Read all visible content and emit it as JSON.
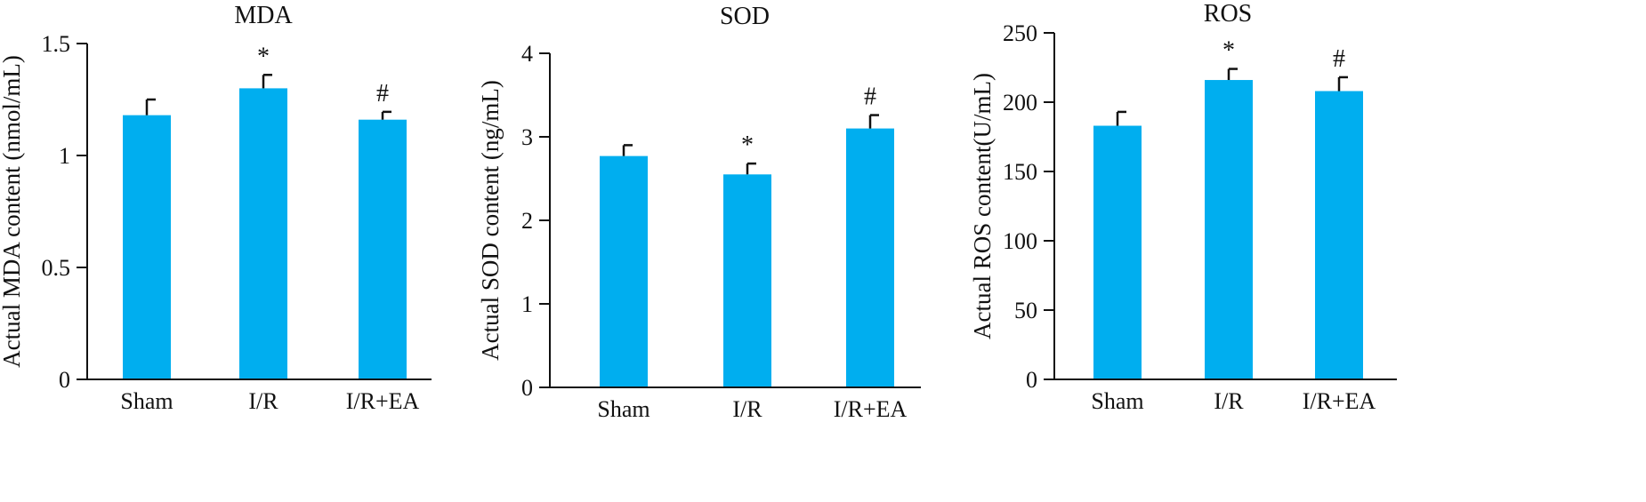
{
  "figure": {
    "bar_color": "#00aeef",
    "axis_color": "#111111"
  },
  "chart_data": [
    {
      "type": "bar",
      "title": "MDA",
      "ylabel": "Actual MDA content (nmol/mL)",
      "categories": [
        "Sham",
        "I/R",
        "I/R+EA"
      ],
      "values": [
        1.18,
        1.3,
        1.16
      ],
      "errors": [
        0.07,
        0.06,
        0.035
      ],
      "annotations": [
        "",
        "*",
        "#"
      ],
      "ylim": [
        0,
        1.5
      ],
      "yticks": [
        0,
        0.5,
        1,
        1.5
      ],
      "ytick_labels": [
        "0",
        "0.5",
        "1",
        "1.5"
      ],
      "grid": false,
      "legend": "none"
    },
    {
      "type": "bar",
      "title": "SOD",
      "ylabel": "Actual SOD content (ng/mL)",
      "categories": [
        "Sham",
        "I/R",
        "I/R+EA"
      ],
      "values": [
        2.77,
        2.55,
        3.1
      ],
      "errors": [
        0.13,
        0.13,
        0.16
      ],
      "annotations": [
        "",
        "*",
        "#"
      ],
      "ylim": [
        0,
        4
      ],
      "yticks": [
        0,
        1,
        2,
        3,
        4
      ],
      "ytick_labels": [
        "0",
        "1",
        "2",
        "3",
        "4"
      ],
      "grid": false,
      "legend": "none"
    },
    {
      "type": "bar",
      "title": "ROS",
      "ylabel": "Actual ROS content(U/mL)",
      "categories": [
        "Sham",
        "I/R",
        "I/R+EA"
      ],
      "values": [
        183,
        216,
        208
      ],
      "errors": [
        10,
        8,
        10
      ],
      "annotations": [
        "",
        "*",
        "#"
      ],
      "ylim": [
        0,
        250
      ],
      "yticks": [
        0,
        50,
        100,
        150,
        200,
        250
      ],
      "ytick_labels": [
        "0",
        "50",
        "100",
        "150",
        "200",
        "250"
      ],
      "grid": false,
      "legend": "none"
    }
  ]
}
